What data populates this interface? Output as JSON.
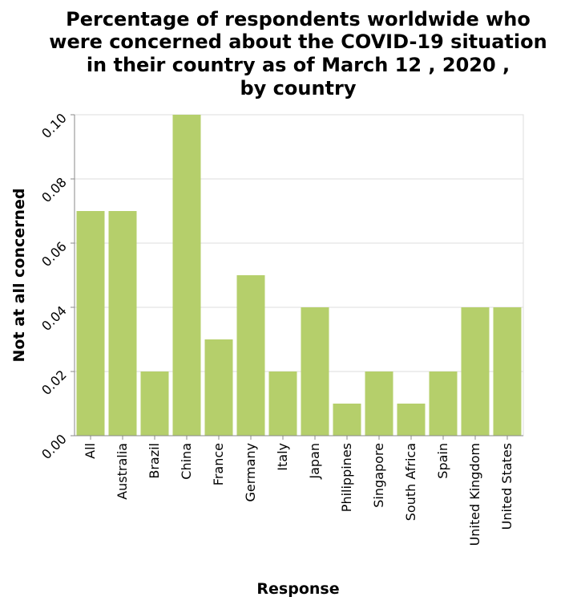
{
  "chart_data": {
    "type": "bar",
    "title_lines": [
      "Percentage of respondents worldwide who",
      "were concerned about the COVID-19 situation",
      "in their country as of March 12 , 2020 ,",
      "by country"
    ],
    "xlabel": "Response",
    "ylabel": "Not at all concerned",
    "categories": [
      "All",
      "Australia",
      "Brazil",
      "China",
      "France",
      "Germany",
      "Italy",
      "Japan",
      "Philippines",
      "Singapore",
      "South Africa",
      "Spain",
      "United Kingdom",
      "United States"
    ],
    "values": [
      0.07,
      0.07,
      0.02,
      0.1,
      0.03,
      0.05,
      0.02,
      0.04,
      0.01,
      0.02,
      0.01,
      0.02,
      0.04,
      0.04
    ],
    "ylim": [
      0,
      0.1
    ],
    "yticks": [
      "0.00",
      "0.02",
      "0.04",
      "0.06",
      "0.08",
      "0.10"
    ],
    "grid": true,
    "bar_color": "#b5cf6b"
  }
}
